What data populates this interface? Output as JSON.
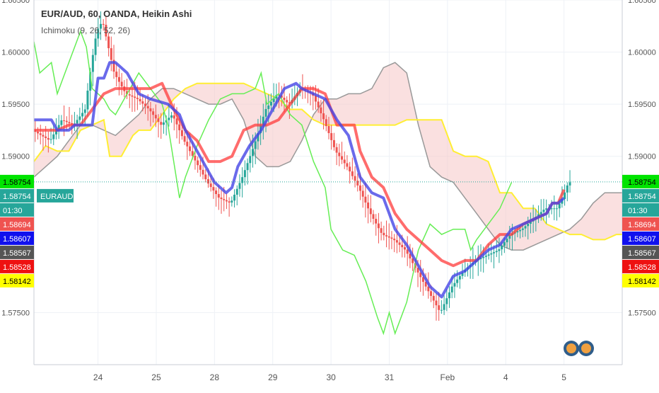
{
  "header": {
    "title": "EUR/AUD, 60, OANDA, Heikin Ashi",
    "indicator": "Ichimoku (9, 26, 52, 26)"
  },
  "colors": {
    "up_candle": "#26a69a",
    "down_candle": "#ef5350",
    "conversion_line": "#4545e6",
    "base_line": "#ff3b3b",
    "lagging_span": "#66ee55",
    "leading_span_a": "#ffee33",
    "leading_span_b": "#999999",
    "cloud_fill": "#f5c6c6",
    "current_price_line": "#26a69a",
    "grid": "#eef1f6"
  },
  "chart_data": {
    "type": "candlestick",
    "symbol": "EURAUD",
    "ylim": [
      1.57,
      1.605
    ],
    "y_ticks": [
      "1.60500",
      "1.60000",
      "1.59500",
      "1.59000",
      "1.57500"
    ],
    "x_ticks": [
      {
        "label": "24",
        "t": 11
      },
      {
        "label": "25",
        "t": 21
      },
      {
        "label": "28",
        "t": 31
      },
      {
        "label": "29",
        "t": 41
      },
      {
        "label": "30",
        "t": 51
      },
      {
        "label": "31",
        "t": 61
      },
      {
        "label": "Feb",
        "t": 71
      },
      {
        "label": "4",
        "t": 81
      },
      {
        "label": "5",
        "t": 91
      }
    ],
    "t_range": [
      0,
      101
    ],
    "price_labels": [
      {
        "value": "1.58754",
        "price": 1.58754,
        "bg": "#00e400",
        "fg": "#000000",
        "tag": "EURAUD"
      },
      {
        "value": "1.58754",
        "price": 1.58754,
        "bg": "#26a69a",
        "fg": "#ffffff",
        "offset": 1
      },
      {
        "value": "01:30",
        "price": 1.58754,
        "bg": "#26a69a",
        "fg": "#ffffff",
        "offset": 2
      },
      {
        "value": "1.58694",
        "price": 1.58694,
        "bg": "#ef5350",
        "fg": "#ffffff"
      },
      {
        "value": "1.58607",
        "price": 1.58607,
        "bg": "#1010ee",
        "fg": "#ffffff"
      },
      {
        "value": "1.58567",
        "price": 1.58567,
        "bg": "#555555",
        "fg": "#ffffff"
      },
      {
        "value": "1.58528",
        "price": 1.58528,
        "bg": "#ee1111",
        "fg": "#ffffff"
      },
      {
        "value": "1.58142",
        "price": 1.58142,
        "bg": "#ffff00",
        "fg": "#000000"
      }
    ],
    "candle_guide": [
      [
        0,
        1.5925
      ],
      [
        3,
        1.5915
      ],
      [
        5,
        1.5935
      ],
      [
        7,
        1.593
      ],
      [
        9,
        1.5945
      ],
      [
        10,
        1.5985
      ],
      [
        11,
        1.602
      ],
      [
        12,
        1.603
      ],
      [
        13,
        1.6005
      ],
      [
        14,
        1.598
      ],
      [
        16,
        1.596
      ],
      [
        18,
        1.5955
      ],
      [
        20,
        1.5945
      ],
      [
        22,
        1.593
      ],
      [
        24,
        1.594
      ],
      [
        26,
        1.5915
      ],
      [
        28,
        1.5895
      ],
      [
        30,
        1.5875
      ],
      [
        32,
        1.586
      ],
      [
        34,
        1.5855
      ],
      [
        36,
        1.588
      ],
      [
        38,
        1.591
      ],
      [
        40,
        1.5945
      ],
      [
        42,
        1.596
      ],
      [
        44,
        1.595
      ],
      [
        46,
        1.5965
      ],
      [
        48,
        1.596
      ],
      [
        50,
        1.5935
      ],
      [
        52,
        1.5905
      ],
      [
        54,
        1.589
      ],
      [
        56,
        1.587
      ],
      [
        58,
        1.5845
      ],
      [
        60,
        1.5825
      ],
      [
        62,
        1.582
      ],
      [
        64,
        1.581
      ],
      [
        66,
        1.579
      ],
      [
        68,
        1.577
      ],
      [
        70,
        1.575
      ],
      [
        72,
        1.5775
      ],
      [
        74,
        1.579
      ],
      [
        76,
        1.58
      ],
      [
        78,
        1.5805
      ],
      [
        80,
        1.581
      ],
      [
        82,
        1.5825
      ],
      [
        84,
        1.583
      ],
      [
        86,
        1.584
      ],
      [
        88,
        1.585
      ],
      [
        90,
        1.585
      ],
      [
        91,
        1.586
      ],
      [
        92,
        1.5875
      ]
    ],
    "conversion_line": [
      [
        0,
        1.5935
      ],
      [
        3,
        1.5935
      ],
      [
        4,
        1.5925
      ],
      [
        6,
        1.5925
      ],
      [
        7,
        1.593
      ],
      [
        10,
        1.593
      ],
      [
        11,
        1.5975
      ],
      [
        12,
        1.5975
      ],
      [
        13,
        1.599
      ],
      [
        14,
        1.599
      ],
      [
        16,
        1.598
      ],
      [
        18,
        1.596
      ],
      [
        20,
        1.5955
      ],
      [
        23,
        1.595
      ],
      [
        25,
        1.594
      ],
      [
        26,
        1.5925
      ],
      [
        28,
        1.5905
      ],
      [
        30,
        1.5885
      ],
      [
        31,
        1.5875
      ],
      [
        33,
        1.5865
      ],
      [
        34,
        1.587
      ],
      [
        35,
        1.589
      ],
      [
        37,
        1.591
      ],
      [
        39,
        1.5925
      ],
      [
        41,
        1.5945
      ],
      [
        43,
        1.5965
      ],
      [
        45,
        1.597
      ],
      [
        46,
        1.5965
      ],
      [
        48,
        1.596
      ],
      [
        50,
        1.5955
      ],
      [
        52,
        1.5935
      ],
      [
        54,
        1.592
      ],
      [
        55,
        1.59
      ],
      [
        56,
        1.588
      ],
      [
        58,
        1.5865
      ],
      [
        60,
        1.586
      ],
      [
        62,
        1.583
      ],
      [
        64,
        1.5815
      ],
      [
        66,
        1.5795
      ],
      [
        68,
        1.5775
      ],
      [
        70,
        1.5765
      ],
      [
        72,
        1.5785
      ],
      [
        74,
        1.579
      ],
      [
        76,
        1.58
      ],
      [
        78,
        1.581
      ],
      [
        80,
        1.5815
      ],
      [
        82,
        1.583
      ],
      [
        84,
        1.5835
      ],
      [
        86,
        1.584
      ],
      [
        88,
        1.5845
      ],
      [
        89,
        1.5855
      ],
      [
        90,
        1.5855
      ],
      [
        91,
        1.586
      ]
    ],
    "base_line": [
      [
        0,
        1.5925
      ],
      [
        2,
        1.5925
      ],
      [
        4,
        1.5925
      ],
      [
        6,
        1.593
      ],
      [
        8,
        1.593
      ],
      [
        10,
        1.5945
      ],
      [
        12,
        1.596
      ],
      [
        14,
        1.5965
      ],
      [
        16,
        1.5965
      ],
      [
        20,
        1.5965
      ],
      [
        22,
        1.597
      ],
      [
        24,
        1.5945
      ],
      [
        26,
        1.5925
      ],
      [
        28,
        1.5915
      ],
      [
        30,
        1.5895
      ],
      [
        32,
        1.5895
      ],
      [
        34,
        1.59
      ],
      [
        36,
        1.5925
      ],
      [
        38,
        1.593
      ],
      [
        40,
        1.593
      ],
      [
        42,
        1.5935
      ],
      [
        44,
        1.595
      ],
      [
        46,
        1.5965
      ],
      [
        48,
        1.5965
      ],
      [
        50,
        1.596
      ],
      [
        52,
        1.593
      ],
      [
        54,
        1.593
      ],
      [
        55,
        1.593
      ],
      [
        56,
        1.5905
      ],
      [
        58,
        1.588
      ],
      [
        60,
        1.587
      ],
      [
        62,
        1.5845
      ],
      [
        64,
        1.583
      ],
      [
        66,
        1.582
      ],
      [
        68,
        1.581
      ],
      [
        70,
        1.58
      ],
      [
        72,
        1.5795
      ],
      [
        74,
        1.58
      ],
      [
        76,
        1.58
      ],
      [
        78,
        1.5815
      ],
      [
        80,
        1.5825
      ],
      [
        82,
        1.5825
      ],
      [
        84,
        1.5835
      ],
      [
        86,
        1.584
      ],
      [
        88,
        1.5845
      ],
      [
        89,
        1.5855
      ],
      [
        90,
        1.5855
      ],
      [
        91,
        1.5868
      ]
    ],
    "lagging_span": [
      [
        0,
        1.601
      ],
      [
        1,
        1.598
      ],
      [
        3,
        1.599
      ],
      [
        4,
        1.596
      ],
      [
        6,
        1.599
      ],
      [
        8,
        1.602
      ],
      [
        9,
        1.6005
      ],
      [
        10,
        1.5965
      ],
      [
        12,
        1.5955
      ],
      [
        13,
        1.5945
      ],
      [
        14,
        1.594
      ],
      [
        16,
        1.596
      ],
      [
        18,
        1.598
      ],
      [
        20,
        1.5965
      ],
      [
        22,
        1.595
      ],
      [
        23,
        1.593
      ],
      [
        24,
        1.5895
      ],
      [
        25,
        1.586
      ],
      [
        26,
        1.588
      ],
      [
        28,
        1.591
      ],
      [
        30,
        1.5935
      ],
      [
        32,
        1.5955
      ],
      [
        34,
        1.596
      ],
      [
        36,
        1.596
      ],
      [
        38,
        1.5965
      ],
      [
        39,
        1.598
      ],
      [
        40,
        1.595
      ],
      [
        42,
        1.596
      ],
      [
        44,
        1.594
      ],
      [
        46,
        1.593
      ],
      [
        48,
        1.5895
      ],
      [
        50,
        1.587
      ],
      [
        51,
        1.583
      ],
      [
        53,
        1.581
      ],
      [
        55,
        1.5805
      ],
      [
        57,
        1.578
      ],
      [
        59,
        1.5745
      ],
      [
        60,
        1.573
      ],
      [
        61,
        1.575
      ],
      [
        62,
        1.573
      ],
      [
        63,
        1.5745
      ],
      [
        64,
        1.576
      ],
      [
        66,
        1.581
      ],
      [
        68,
        1.5835
      ],
      [
        70,
        1.5825
      ],
      [
        72,
        1.583
      ],
      [
        74,
        1.583
      ],
      [
        75,
        1.581
      ],
      [
        76,
        1.582
      ],
      [
        78,
        1.5835
      ],
      [
        80,
        1.585
      ],
      [
        82,
        1.5875
      ]
    ],
    "leading_span_a": [
      [
        0,
        1.5895
      ],
      [
        2,
        1.591
      ],
      [
        4,
        1.5905
      ],
      [
        6,
        1.5905
      ],
      [
        8,
        1.5925
      ],
      [
        10,
        1.593
      ],
      [
        12,
        1.5935
      ],
      [
        13,
        1.59
      ],
      [
        15,
        1.59
      ],
      [
        17,
        1.592
      ],
      [
        18,
        1.5925
      ],
      [
        20,
        1.5925
      ],
      [
        22,
        1.594
      ],
      [
        24,
        1.5955
      ],
      [
        26,
        1.5965
      ],
      [
        28,
        1.597
      ],
      [
        30,
        1.597
      ],
      [
        34,
        1.597
      ],
      [
        36,
        1.597
      ],
      [
        38,
        1.5965
      ],
      [
        40,
        1.596
      ],
      [
        42,
        1.5955
      ],
      [
        44,
        1.5945
      ],
      [
        46,
        1.5945
      ],
      [
        48,
        1.5935
      ],
      [
        50,
        1.593
      ],
      [
        52,
        1.593
      ],
      [
        54,
        1.593
      ],
      [
        56,
        1.593
      ],
      [
        58,
        1.593
      ],
      [
        60,
        1.593
      ],
      [
        62,
        1.593
      ],
      [
        64,
        1.5935
      ],
      [
        66,
        1.5935
      ],
      [
        68,
        1.5935
      ],
      [
        70,
        1.5935
      ],
      [
        72,
        1.5905
      ],
      [
        74,
        1.59
      ],
      [
        76,
        1.59
      ],
      [
        78,
        1.5895
      ],
      [
        80,
        1.5865
      ],
      [
        82,
        1.5865
      ],
      [
        84,
        1.585
      ],
      [
        86,
        1.585
      ],
      [
        88,
        1.5835
      ],
      [
        90,
        1.583
      ],
      [
        92,
        1.5825
      ],
      [
        94,
        1.5825
      ],
      [
        96,
        1.582
      ],
      [
        98,
        1.582
      ],
      [
        100,
        1.5825
      ],
      [
        101,
        1.5825
      ]
    ],
    "leading_span_b": [
      [
        0,
        1.588
      ],
      [
        2,
        1.589
      ],
      [
        4,
        1.59
      ],
      [
        6,
        1.5915
      ],
      [
        8,
        1.593
      ],
      [
        10,
        1.593
      ],
      [
        12,
        1.5925
      ],
      [
        14,
        1.592
      ],
      [
        16,
        1.593
      ],
      [
        18,
        1.594
      ],
      [
        20,
        1.5955
      ],
      [
        22,
        1.5965
      ],
      [
        24,
        1.5965
      ],
      [
        26,
        1.596
      ],
      [
        28,
        1.5955
      ],
      [
        30,
        1.595
      ],
      [
        32,
        1.595
      ],
      [
        34,
        1.5955
      ],
      [
        36,
        1.5935
      ],
      [
        38,
        1.59
      ],
      [
        40,
        1.589
      ],
      [
        42,
        1.589
      ],
      [
        44,
        1.5895
      ],
      [
        46,
        1.5915
      ],
      [
        48,
        1.594
      ],
      [
        50,
        1.5955
      ],
      [
        52,
        1.5955
      ],
      [
        54,
        1.596
      ],
      [
        56,
        1.596
      ],
      [
        58,
        1.5965
      ],
      [
        60,
        1.5985
      ],
      [
        62,
        1.599
      ],
      [
        64,
        1.598
      ],
      [
        66,
        1.593
      ],
      [
        68,
        1.589
      ],
      [
        70,
        1.588
      ],
      [
        72,
        1.5875
      ],
      [
        74,
        1.586
      ],
      [
        76,
        1.5845
      ],
      [
        78,
        1.583
      ],
      [
        80,
        1.5815
      ],
      [
        82,
        1.581
      ],
      [
        84,
        1.581
      ],
      [
        86,
        1.5815
      ],
      [
        88,
        1.582
      ],
      [
        90,
        1.5825
      ],
      [
        92,
        1.583
      ],
      [
        94,
        1.584
      ],
      [
        96,
        1.5855
      ],
      [
        98,
        1.5865
      ],
      [
        100,
        1.5865
      ],
      [
        101,
        1.5865
      ]
    ]
  }
}
